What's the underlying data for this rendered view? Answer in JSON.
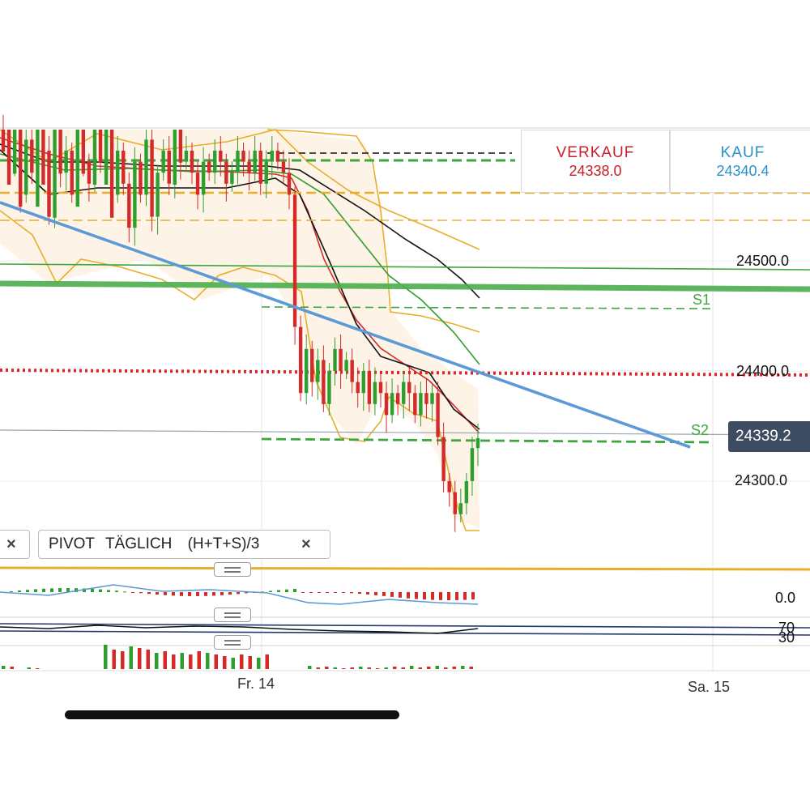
{
  "quote": {
    "sell_label": "VERKAUF",
    "sell_value": "24338.0",
    "buy_label": "KAUF",
    "buy_value": "24340.4"
  },
  "colors": {
    "bullish": "#2e9e2e",
    "bearish": "#d42a2a",
    "bollinger": "#e8ae2a",
    "ema_fast": "#d42a2a",
    "ema_mid": "#2e9e2e",
    "ema_slow": "#111111",
    "trendline": "#5b9ad6",
    "pivot_support": "#3ea63e",
    "resistance_dotted": "#e0252a",
    "price_badge": "#3e4c62"
  },
  "chart_data": {
    "type": "candlestick",
    "instrument_quote": {
      "bid": 24338.0,
      "ask": 24340.4
    },
    "last_price": 24339.2,
    "last_price_label": "24339.2",
    "y_ticks": [
      {
        "value": 24500,
        "label": "24500.0"
      },
      {
        "value": 24400,
        "label": "24400.0"
      },
      {
        "value": 24300,
        "label": "24300.0"
      }
    ],
    "x_ticks": [
      {
        "label": "Fr. 14"
      },
      {
        "label": "Sa. 15"
      }
    ],
    "pivot_levels": [
      {
        "name": "S1",
        "value": 24463
      },
      {
        "name": "S2",
        "value": 24336
      }
    ],
    "horizontal_levels": [
      {
        "value": 24480,
        "style": "solid-thick",
        "color": "green"
      },
      {
        "value": 24397,
        "style": "dotted",
        "color": "red"
      }
    ],
    "candles_close": [
      24640,
      24590,
      24630,
      24560,
      24610,
      24580,
      24650,
      24600,
      24540,
      24620,
      24580,
      24600,
      24560,
      24630,
      24590,
      24570,
      24620,
      24590,
      24640,
      24560,
      24600,
      24570,
      24530,
      24590,
      24560,
      24610,
      24540,
      24580,
      24600,
      24570,
      24620,
      24590,
      24600,
      24580,
      24560,
      24590,
      24580,
      24600,
      24590,
      24570,
      24580,
      24600,
      24590,
      24580,
      24600,
      24570,
      24590,
      24600,
      24590,
      24580,
      24560,
      24440,
      24380,
      24420,
      24390,
      24410,
      24370,
      24400,
      24420,
      24400,
      24410,
      24390,
      24380,
      24400,
      24370,
      24390,
      24380,
      24360,
      24380,
      24370,
      24390,
      24380,
      24360,
      24380,
      24370,
      24380,
      24340,
      24300,
      24290,
      24270,
      24280,
      24300,
      24330,
      24339
    ]
  },
  "indicator_panel": {
    "tag_close": "×",
    "pivot_label": "PIVOT",
    "pivot_period": "TÄGLICH",
    "pivot_formula": "(H+T+S)/3",
    "macd_zero_label": "0.0",
    "rsi_upper_label": "70",
    "rsi_lower_label": "30"
  }
}
